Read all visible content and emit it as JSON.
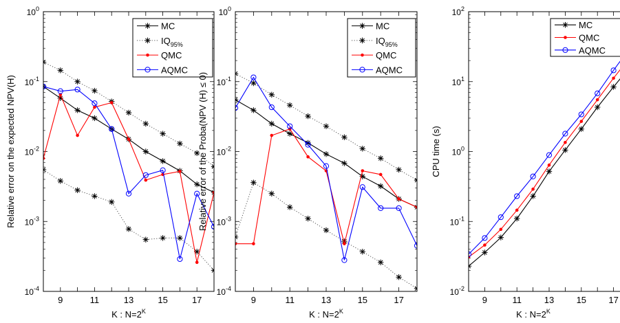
{
  "chart_data": [
    {
      "type": "line",
      "yscale": "log",
      "xlabel": "K : N=2",
      "xlabel_sup": "K",
      "ylabel": "Relative error on the expected NPV(H)",
      "xlim": [
        8,
        18
      ],
      "ylim": [
        0.0001,
        1
      ],
      "xticks": [
        "9",
        "11",
        "13",
        "15",
        "17"
      ],
      "ytick_bases": [
        "10",
        "10",
        "10",
        "10",
        "10"
      ],
      "ytick_exps": [
        "-4",
        "-3",
        "-2",
        "-1",
        "0"
      ],
      "legend": "top-right",
      "series": [
        {
          "name": "MC",
          "marker": "star",
          "color": "#000000",
          "style": "solid",
          "x": [
            8,
            9,
            10,
            11,
            12,
            13,
            14,
            15,
            16,
            17,
            18
          ],
          "y": [
            0.085,
            0.058,
            0.039,
            0.03,
            0.021,
            0.015,
            0.01,
            0.0073,
            0.0053,
            0.0034,
            0.0026
          ]
        },
        {
          "name": "IQ",
          "name_sub": "95%",
          "marker": "star",
          "color": "#000000",
          "style": "dotted",
          "x": [
            8,
            9,
            10,
            11,
            12,
            13,
            14,
            15,
            16,
            17,
            18
          ],
          "y": [
            0.19,
            0.145,
            0.1,
            0.074,
            0.052,
            0.036,
            0.025,
            0.018,
            0.013,
            0.0095,
            0.0061
          ]
        },
        {
          "name": "",
          "marker": "star",
          "color": "#000000",
          "style": "dotted",
          "x": [
            8,
            9,
            10,
            11,
            12,
            13,
            14,
            15,
            16,
            17,
            18
          ],
          "y": [
            0.0055,
            0.0038,
            0.0028,
            0.0023,
            0.0019,
            0.00078,
            0.00055,
            0.00058,
            0.00058,
            0.00037,
            0.0002
          ]
        },
        {
          "name": "QMC",
          "marker": "dot",
          "color": "#ff0000",
          "style": "solid",
          "x": [
            8,
            9,
            10,
            11,
            12,
            13,
            14,
            15,
            16,
            17,
            18
          ],
          "y": [
            0.008,
            0.065,
            0.017,
            0.043,
            0.05,
            0.015,
            0.0039,
            0.0047,
            0.0052,
            0.00026,
            0.0026
          ]
        },
        {
          "name": "AQMC",
          "marker": "circle",
          "color": "#0000ff",
          "style": "solid",
          "x": [
            8,
            9,
            10,
            11,
            12,
            13,
            14,
            15,
            16,
            17,
            18
          ],
          "y": [
            0.085,
            0.073,
            0.077,
            0.049,
            0.021,
            0.0025,
            0.0046,
            0.0054,
            0.00029,
            0.0025,
            0.00084
          ]
        }
      ]
    },
    {
      "type": "line",
      "yscale": "log",
      "xlabel": "K : N=2",
      "xlabel_sup": "K",
      "ylabel": "Relative error of the  Proba(NPV (H) ≤ 0)",
      "xlim": [
        8,
        18
      ],
      "ylim": [
        0.0001,
        1
      ],
      "xticks": [
        "9",
        "11",
        "13",
        "15",
        "17"
      ],
      "ytick_bases": [
        "10",
        "10",
        "10",
        "10",
        "10"
      ],
      "ytick_exps": [
        "-4",
        "-3",
        "-2",
        "-1",
        "0"
      ],
      "legend": "top-right",
      "series": [
        {
          "name": "MC",
          "marker": "star",
          "color": "#000000",
          "style": "solid",
          "x": [
            8,
            9,
            10,
            11,
            12,
            13,
            14,
            15,
            16,
            17,
            18
          ],
          "y": [
            0.055,
            0.039,
            0.025,
            0.018,
            0.0133,
            0.0092,
            0.0068,
            0.0044,
            0.0032,
            0.0021,
            0.0016
          ]
        },
        {
          "name": "IQ",
          "name_sub": "95%",
          "marker": "star",
          "color": "#000000",
          "style": "dotted",
          "x": [
            8,
            9,
            10,
            11,
            12,
            13,
            14,
            15,
            16,
            17,
            18
          ],
          "y": [
            0.13,
            0.095,
            0.065,
            0.046,
            0.032,
            0.023,
            0.016,
            0.011,
            0.008,
            0.0055,
            0.0039
          ]
        },
        {
          "name": "",
          "marker": "star",
          "color": "#000000",
          "style": "dotted",
          "x": [
            8,
            9,
            10,
            11,
            12,
            13,
            14,
            15,
            16,
            17,
            18
          ],
          "y": [
            0.0006,
            0.0036,
            0.0025,
            0.0016,
            0.0011,
            0.00075,
            0.00052,
            0.00037,
            0.00026,
            0.00016,
            0.00011
          ]
        },
        {
          "name": "QMC",
          "marker": "dot",
          "color": "#ff0000",
          "style": "solid",
          "x": [
            8,
            9,
            10,
            11,
            12,
            13,
            14,
            15,
            16,
            17,
            18
          ],
          "y": [
            0.00048,
            0.00048,
            0.017,
            0.021,
            0.0084,
            0.0053,
            0.00048,
            0.0053,
            0.0047,
            0.0021,
            0.0016
          ]
        },
        {
          "name": "AQMC",
          "marker": "circle",
          "color": "#0000ff",
          "style": "solid",
          "x": [
            8,
            9,
            10,
            11,
            12,
            13,
            14,
            15,
            16,
            17,
            18
          ],
          "y": [
            0.042,
            0.115,
            0.043,
            0.023,
            0.0125,
            0.0062,
            0.00028,
            0.0031,
            0.00155,
            0.00155,
            0.00045
          ]
        }
      ]
    },
    {
      "type": "line",
      "yscale": "log",
      "xlabel": "K : N=2",
      "xlabel_sup": "K",
      "ylabel": "CPU time (s)",
      "xlim": [
        8,
        18
      ],
      "ylim": [
        0.01,
        100
      ],
      "xticks": [
        "9",
        "11",
        "13",
        "15",
        "17"
      ],
      "ytick_bases": [
        "10",
        "10",
        "10",
        "10",
        "10"
      ],
      "ytick_exps": [
        "-2",
        "-1",
        "0",
        "1",
        "2"
      ],
      "legend": "top-right",
      "series": [
        {
          "name": "MC",
          "marker": "star",
          "color": "#000000",
          "style": "solid",
          "x": [
            8,
            9,
            10,
            11,
            12,
            13,
            14,
            15,
            16,
            17,
            18
          ],
          "y": [
            0.023,
            0.036,
            0.059,
            0.11,
            0.23,
            0.52,
            1.05,
            2.1,
            4.3,
            8.4,
            16
          ]
        },
        {
          "name": "QMC",
          "marker": "dot",
          "color": "#ff0000",
          "style": "solid",
          "x": [
            8,
            9,
            10,
            11,
            12,
            13,
            14,
            15,
            16,
            17,
            18
          ],
          "y": [
            0.031,
            0.046,
            0.077,
            0.145,
            0.29,
            0.64,
            1.35,
            2.7,
            5.5,
            11.2,
            22
          ]
        },
        {
          "name": "AQMC",
          "marker": "circle",
          "color": "#0000ff",
          "style": "solid",
          "x": [
            8,
            9,
            10,
            11,
            12,
            13,
            14,
            15,
            16,
            17,
            18
          ],
          "y": [
            0.034,
            0.058,
            0.115,
            0.23,
            0.44,
            0.89,
            1.8,
            3.4,
            6.8,
            14.5,
            30
          ]
        }
      ]
    }
  ]
}
